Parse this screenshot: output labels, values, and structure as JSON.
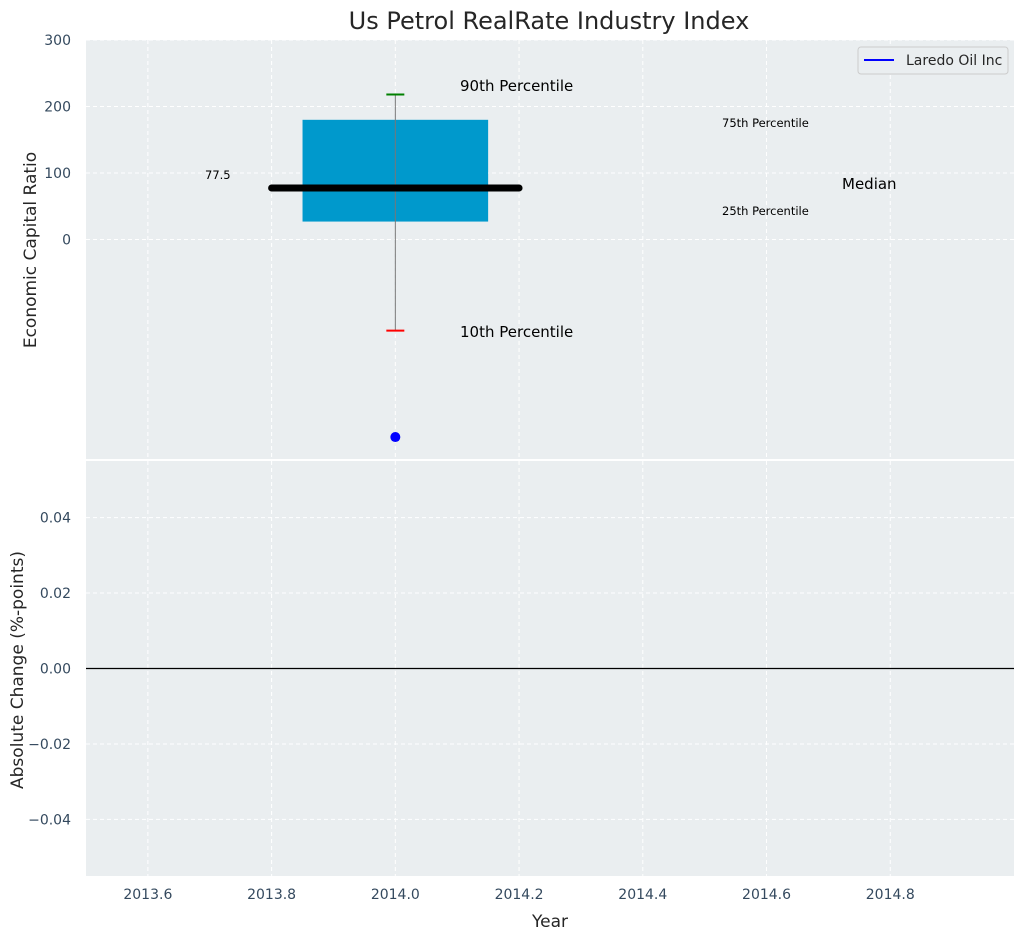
{
  "chart_data": [
    {
      "type": "box",
      "title": "Us Petrol RealRate Industry Index",
      "ylabel": "Economic Capital Ratio",
      "ylim": [
        -330,
        300
      ],
      "yticks": [
        0,
        100,
        200,
        300
      ],
      "ytick_labels": [
        "0",
        "100",
        "200",
        "300"
      ],
      "xlim": [
        2013.5,
        2015.0
      ],
      "grid": true,
      "box": {
        "x": 2014.0,
        "p10": -137,
        "p25": 27,
        "median": 77.5,
        "p75": 180,
        "p90": 218
      },
      "box_color": "#0099cc",
      "median_label": "77.5",
      "annotations": {
        "p90": "90th Percentile",
        "p75": "75th Percentile",
        "median": "Median",
        "p25": "25th Percentile",
        "p10": "10th Percentile"
      },
      "series": [
        {
          "name": "Laredo Oil Inc",
          "x": [
            2014.0
          ],
          "y": [
            -297
          ],
          "color": "#0000ff"
        }
      ],
      "legend": {
        "labels": [
          "Laredo Oil Inc"
        ],
        "position": "top-right"
      }
    },
    {
      "type": "line",
      "xlabel": "Year",
      "ylabel": "Absolute Change (%-points)",
      "xlim": [
        2013.5,
        2015.0
      ],
      "ylim": [
        -0.055,
        0.055
      ],
      "xticks": [
        2013.6,
        2013.8,
        2014.0,
        2014.2,
        2014.4,
        2014.6,
        2014.8
      ],
      "xtick_labels": [
        "2013.6",
        "2013.8",
        "2014.0",
        "2014.2",
        "2014.4",
        "2014.6",
        "2014.8"
      ],
      "yticks": [
        -0.04,
        -0.02,
        0.0,
        0.02,
        0.04
      ],
      "ytick_labels": [
        "−0.04",
        "−0.02",
        "0.00",
        "0.02",
        "0.04"
      ],
      "hline": 0.0,
      "grid": true,
      "series": []
    }
  ]
}
